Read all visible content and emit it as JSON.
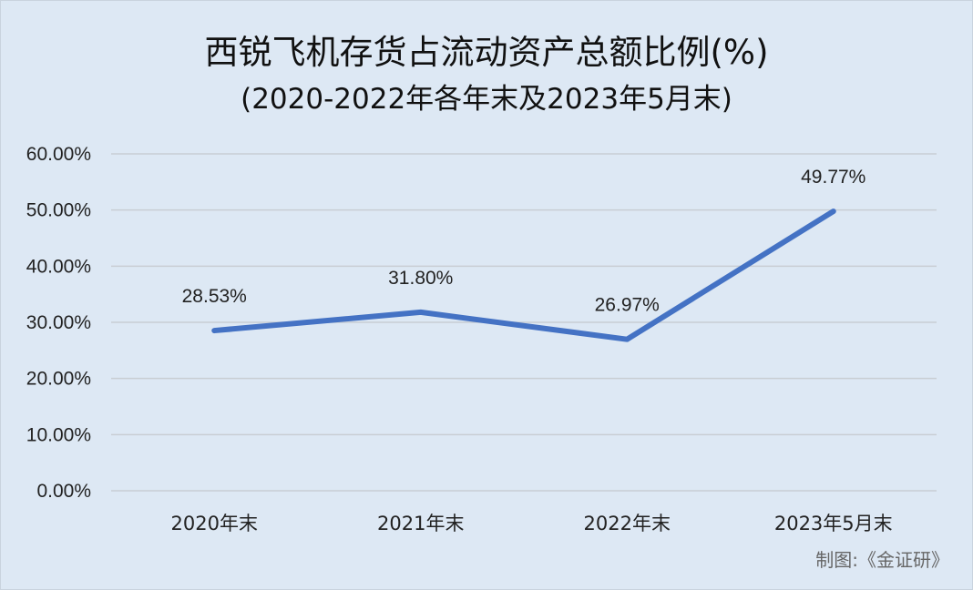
{
  "chart_data": {
    "type": "line",
    "title": "西锐飞机存货占流动资产总额比例(%)",
    "subtitle": "(2020-2022年各年末及2023年5月末)",
    "categories": [
      "2020年末",
      "2021年末",
      "2022年末",
      "2023年5月末"
    ],
    "series": [
      {
        "values": [
          28.53,
          31.8,
          26.97,
          49.77
        ],
        "labels": [
          "28.53%",
          "31.80%",
          "26.97%",
          "49.77%"
        ],
        "color": "#4472c4"
      }
    ],
    "ylim": [
      0,
      60
    ],
    "yticks": [
      0,
      10,
      20,
      30,
      40,
      50,
      60
    ],
    "ytick_labels": [
      "0.00%",
      "10.00%",
      "20.00%",
      "30.00%",
      "40.00%",
      "50.00%",
      "60.00%"
    ],
    "grid": true,
    "xlabel": "",
    "ylabel": ""
  },
  "source_note": "制图:《金证研》",
  "colors": {
    "background": "#dde8f4",
    "gridline": "#c8cdd3",
    "line": "#4472c4"
  }
}
